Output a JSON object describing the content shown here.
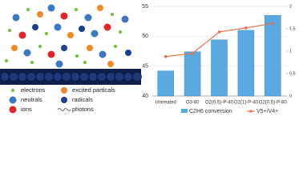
{
  "illustration": {
    "legend": [
      "electrons",
      "excited particals",
      "neutrals",
      "radicals",
      "ions",
      "photons"
    ]
  },
  "chart_data": {
    "type": "bar-line",
    "categories": [
      "Untreated",
      "O3-80",
      "O2(0.5)-P-40",
      "O2(1)-P-40",
      "O2(0.5)-P-80"
    ],
    "series": [
      {
        "name": "C2H6 conversion",
        "type": "bar",
        "color": "#5aa9e0",
        "values": [
          44.2,
          47.4,
          49.4,
          51.0,
          53.5
        ]
      },
      {
        "name": "V5+/V4+",
        "type": "line",
        "axis": "y2",
        "color": "#e8734a",
        "values": [
          0.88,
          0.95,
          1.43,
          1.52,
          1.62
        ]
      }
    ],
    "ylim": [
      40,
      55
    ],
    "yticks": [
      40,
      45,
      50,
      55
    ],
    "y2lim": [
      0,
      2
    ],
    "y2ticks": [
      0,
      0.5,
      1,
      1.5,
      2
    ],
    "grid": true
  }
}
